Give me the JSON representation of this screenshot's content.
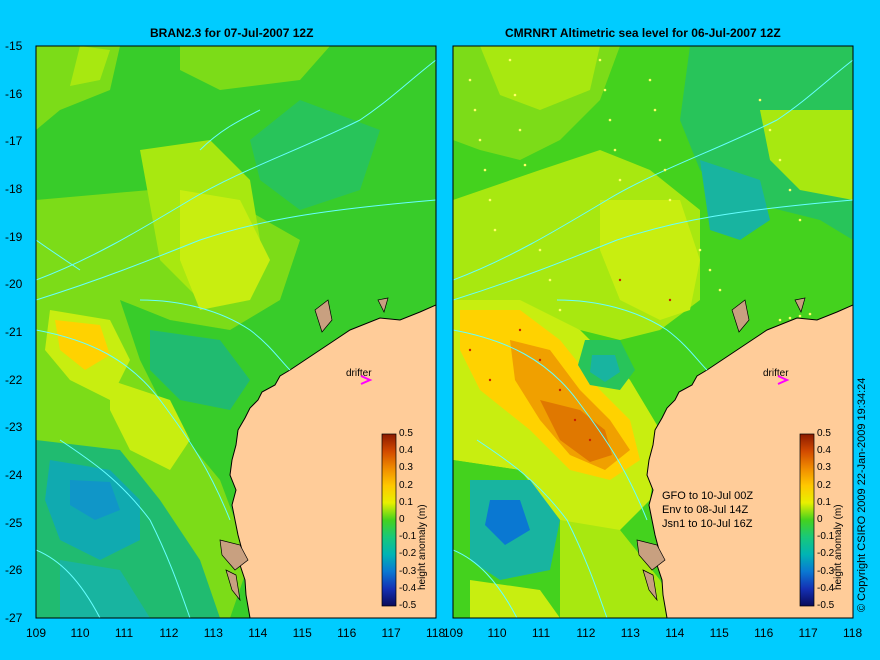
{
  "figure": {
    "left_panel": {
      "title": "BRAN2.3 for 07-Jul-2007 12Z",
      "drifter_label": "drifter",
      "colorbar_label": "height anomaly (m)"
    },
    "right_panel": {
      "title": "CMRNRT Altimetric sea level  for 06-Jul-2007 12Z",
      "drifter_label": "drifter",
      "colorbar_label": "height anomaly (m)",
      "notes": [
        "GFO to 10-Jul 00Z",
        "Env to 08-Jul 14Z",
        "Jsn1 to 10-Jul 16Z"
      ]
    },
    "copyright": "© Copyright CSIRO 2009   22-Jan-2009 19:34:24",
    "lon_ticks": [
      "109",
      "110",
      "111",
      "112",
      "113",
      "114",
      "115",
      "116",
      "117",
      "118"
    ],
    "lat_ticks": [
      "-15",
      "-16",
      "-17",
      "-18",
      "-19",
      "-20",
      "-21",
      "-22",
      "-23",
      "-24",
      "-25",
      "-26",
      "-27"
    ],
    "colorbar_ticks": [
      "0.5",
      "0.4",
      "0.3",
      "0.2",
      "0.1",
      "0",
      "-0.1",
      "-0.2",
      "-0.3",
      "-0.4",
      "-0.5"
    ],
    "colors": {
      "background": "#00ccff",
      "land": "#ffcc99",
      "coastline": "#000000",
      "bathymetry_contours": "#66ffff",
      "drifter_arrow": "#ff00ff"
    }
  }
}
